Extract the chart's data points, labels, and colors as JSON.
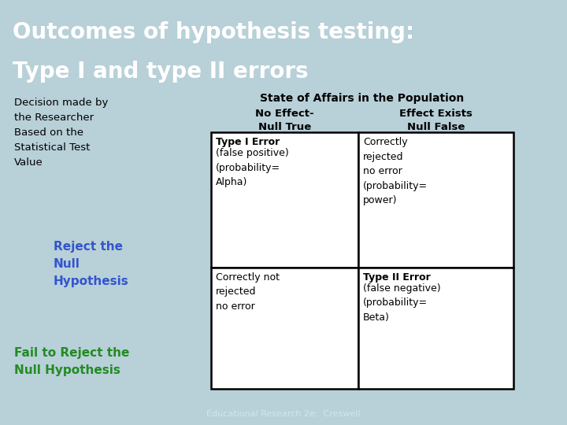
{
  "title_line1": "Outcomes of hypothesis testing:",
  "title_line2": "Type I and type II errors",
  "title_bg_color": "#1a7a7a",
  "title_text_color": "#ffffff",
  "slide_bg_color": "#b8d0d8",
  "footer_bg_color": "#1a7a7a",
  "footer_text": "Educational Research 2e:  Creswell",
  "footer_text_color": "#d0e8e8",
  "left_label_lines": "Decision made by\nthe Researcher\nBased on the\nStatistical Test\nValue",
  "reject_label": "Reject the\nNull\nHypothesis",
  "reject_color": "#3355cc",
  "fail_label": "Fail to Reject the\nNull Hypothesis",
  "fail_color": "#228b22",
  "state_label": "State of Affairs in the Population",
  "col1_header": "No Effect-\nNull True",
  "col2_header": "Effect Exists\nNull False",
  "cell_top_left_bold": "Type I Error",
  "cell_top_left_rest": "(false positive)\n(probability=\nAlpha)",
  "cell_top_right": "Correctly\nrejected\nno error\n(probability=\npower)",
  "cell_bot_left": "Correctly not\nrejected\nno error",
  "cell_bot_right_bold": "Type II Error",
  "cell_bot_right_rest": "(false negative)\n(probability=\nBeta)",
  "table_border_color": "#000000",
  "cell_bg_color": "#ffffff",
  "main_text_color": "#000000",
  "figwidth": 7.2,
  "figheight": 5.4,
  "dpi": 100
}
